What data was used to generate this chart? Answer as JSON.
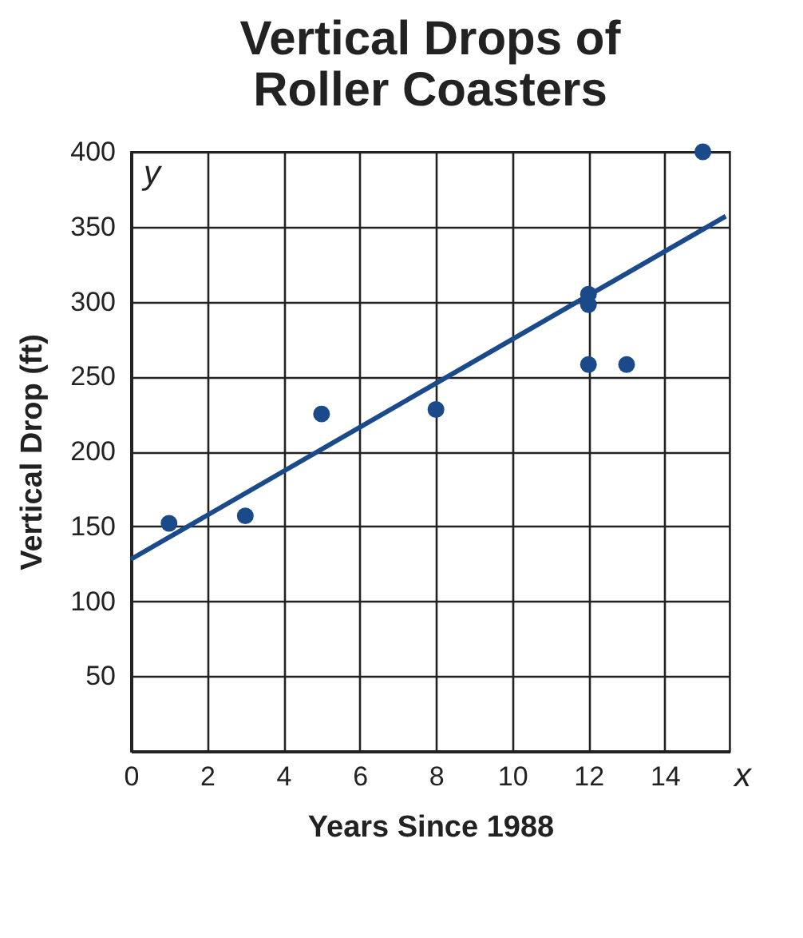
{
  "chart_data": {
    "type": "scatter",
    "title": "Vertical Drops of Roller Coasters",
    "xlabel": "Years Since 1988",
    "ylabel": "Vertical Drop (ft)",
    "annotations": [
      "x",
      "y"
    ],
    "xlim": [
      0,
      15.7
    ],
    "ylim": [
      0,
      400
    ],
    "xticks": [
      0,
      2,
      4,
      6,
      8,
      10,
      12,
      14
    ],
    "yticks": [
      50,
      100,
      150,
      200,
      250,
      300,
      350,
      400
    ],
    "grid": true,
    "series": [
      {
        "color": "#1b4a8a",
        "marker": "circle",
        "x": [
          1,
          3,
          5,
          8,
          12,
          12,
          12,
          13,
          15
        ],
        "values": [
          152,
          157,
          225,
          228,
          305,
          298,
          258,
          258,
          400
        ]
      },
      {
        "type": "line",
        "color": "#1b4a8a",
        "marker": "none",
        "x": [
          0,
          15.6
        ],
        "values": [
          128,
          357
        ]
      }
    ]
  }
}
